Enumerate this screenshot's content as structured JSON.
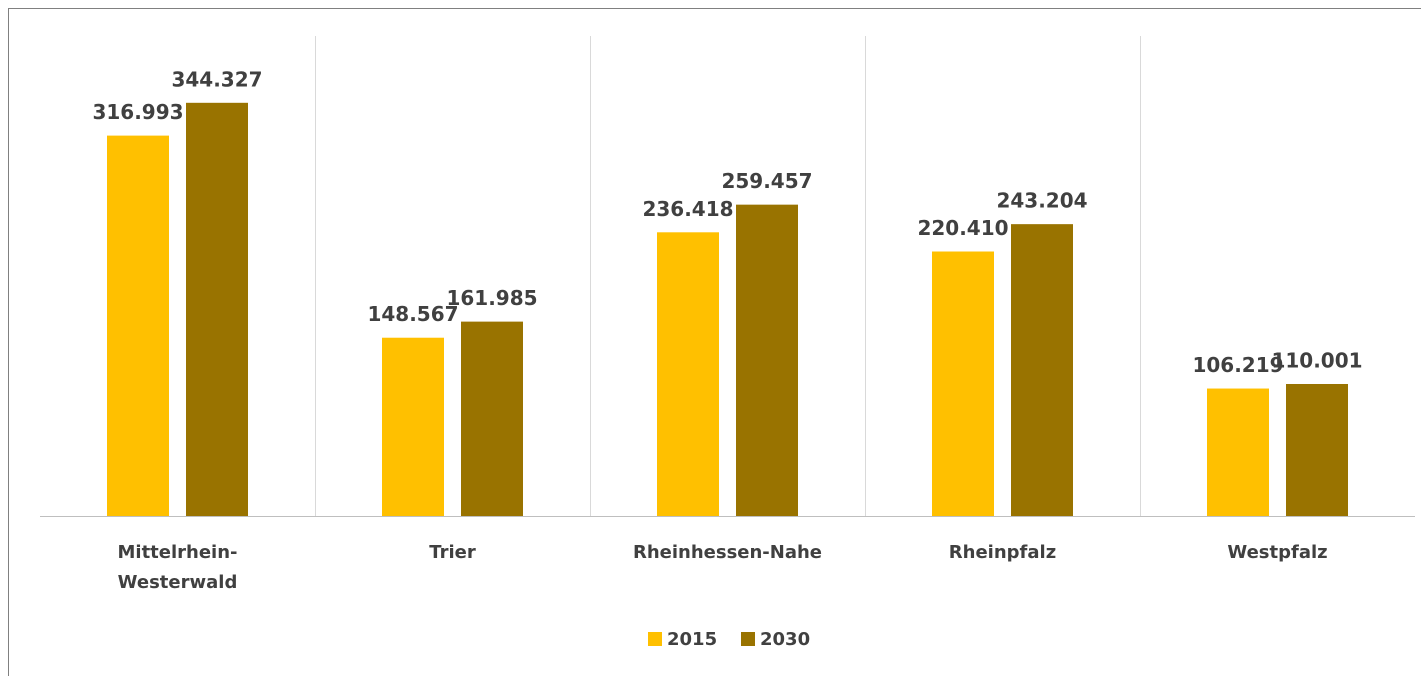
{
  "chart_data": {
    "type": "bar",
    "categories": [
      "Mittelrhein-\nWesterwald",
      "Trier",
      "Rheinhessen-Nahe",
      "Rheinpfalz",
      "Westpfalz"
    ],
    "series": [
      {
        "name": "2015",
        "color": "#ffc000",
        "values": [
          316993,
          148567,
          236418,
          220410,
          106219
        ],
        "value_labels": [
          "316.993",
          "148.567",
          "236.418",
          "220.410",
          "106.219"
        ]
      },
      {
        "name": "2030",
        "color": "#997300",
        "values": [
          344327,
          161985,
          259457,
          243204,
          110001
        ],
        "value_labels": [
          "344.327",
          "161.985",
          "259.457",
          "243.204",
          "110.001"
        ]
      }
    ],
    "ylim": [
      0,
      400000
    ],
    "legend": "bottom"
  }
}
